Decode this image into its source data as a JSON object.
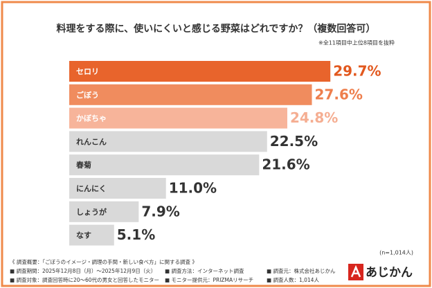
{
  "chart_data": {
    "type": "hbar",
    "title": "料理をする際に、使いにくいと感じる野菜はどれですか？（複数回答可）",
    "subtitle": "※全11項目中上位8項目を抜粋",
    "categories": [
      "セロリ",
      "ごぼう",
      "かぼちゃ",
      "れんこん",
      "春菊",
      "にんにく",
      "しょうが",
      "なす"
    ],
    "values": [
      29.7,
      27.6,
      24.8,
      22.5,
      21.6,
      11.0,
      7.9,
      5.1
    ],
    "value_labels": [
      "29.7%",
      "27.6%",
      "24.8%",
      "22.5%",
      "21.6%",
      "11.0%",
      "7.9%",
      "5.1%"
    ],
    "colors": [
      "#e8642c",
      "#f08c5e",
      "#f7b49a",
      "#d9d9d9",
      "#d9d9d9",
      "#d9d9d9",
      "#d9d9d9",
      "#d9d9d9"
    ],
    "value_label_colors": [
      "#e2581e",
      "#ee7e4c",
      "#f5ae92",
      "#333333",
      "#333333",
      "#333333",
      "#333333",
      "#333333"
    ],
    "category_label_colors": [
      "#ffffff",
      "#ffffff",
      "#ffffff",
      "#333333",
      "#333333",
      "#333333",
      "#333333",
      "#333333"
    ],
    "sample_note": "(n=1,014人)",
    "survey_title": "《 調査概要：「ごぼうのイメージ・調理の手間・新しい食べ方」に関する調査 》",
    "survey_notes": [
      [
        "■ 調査期間：2025年12月8日（月）～2025年12月9日（火）",
        "■ 調査方法：インターネット調査",
        "■ 調査元：株式会社あじかん"
      ],
      [
        "■ 調査対象：調査回答時に20～60代の男女と回答したモニター",
        "■ モニター提供元：PRIZMAリサーチ",
        "■ 調査人数：1,014人"
      ]
    ],
    "logo": "あじかん"
  }
}
